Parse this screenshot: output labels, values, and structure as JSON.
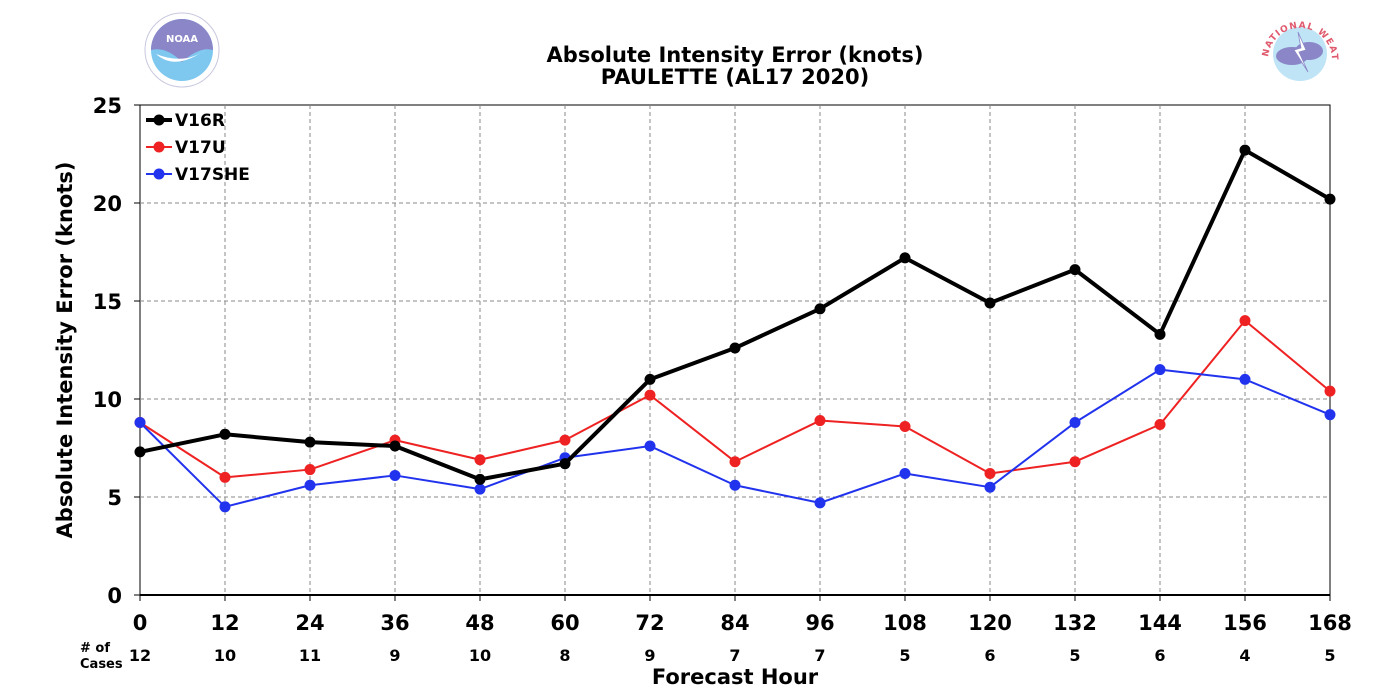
{
  "chart_data": {
    "type": "line",
    "title": "Absolute Intensity Error (knots)",
    "subtitle": "PAULETTE (AL17 2020)",
    "xlabel": "Forecast Hour",
    "ylabel": "Absolute Intensity Error (knots)",
    "x": [
      0,
      12,
      24,
      36,
      48,
      60,
      72,
      84,
      96,
      108,
      120,
      132,
      144,
      156,
      168
    ],
    "xlim": [
      0,
      168
    ],
    "ylim": [
      0,
      25
    ],
    "yticks": [
      0,
      5,
      10,
      15,
      20,
      25
    ],
    "grid": true,
    "legend_position": "top-left",
    "cases_label_line1": "# of",
    "cases_label_line2": "Cases",
    "cases": [
      12,
      10,
      11,
      9,
      10,
      8,
      9,
      7,
      7,
      5,
      6,
      5,
      6,
      4,
      5
    ],
    "series": [
      {
        "name": "V16R",
        "color": "#000000",
        "values": [
          7.3,
          8.2,
          7.8,
          7.6,
          5.9,
          6.7,
          11.0,
          12.6,
          14.6,
          17.2,
          14.9,
          16.6,
          13.3,
          22.7,
          20.2
        ]
      },
      {
        "name": "V17U",
        "color": "#ee2222",
        "values": [
          8.8,
          6.0,
          6.4,
          7.9,
          6.9,
          7.9,
          10.2,
          6.8,
          8.9,
          8.6,
          6.2,
          6.8,
          8.7,
          14.0,
          10.4
        ]
      },
      {
        "name": "V17SHE",
        "color": "#2233ee",
        "values": [
          8.8,
          4.5,
          5.6,
          6.1,
          5.4,
          7.0,
          7.6,
          5.6,
          4.7,
          6.2,
          5.5,
          8.8,
          11.5,
          11.0,
          9.2
        ]
      }
    ]
  },
  "logos": {
    "noaa": {
      "name": "noaa-logo",
      "text": "NOAA"
    },
    "nws": {
      "name": "nws-logo",
      "text": "NATIONAL WEATHER SERVICE"
    }
  }
}
